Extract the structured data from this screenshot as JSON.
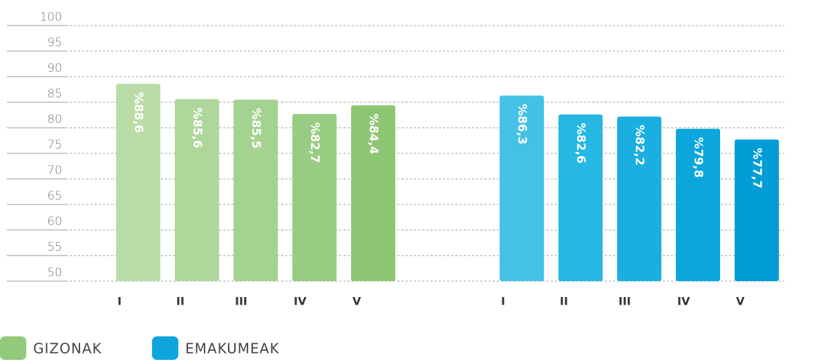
{
  "chart_data": {
    "type": "bar",
    "categories": [
      "I",
      "II",
      "III",
      "IV",
      "V"
    ],
    "series": [
      {
        "name": "GIZONAK",
        "color": "#93c97a",
        "colors": [
          "#badca7",
          "#afd79c",
          "#a4d290",
          "#99cc83",
          "#8dc672"
        ],
        "values": [
          88.6,
          85.6,
          85.5,
          82.7,
          84.4
        ],
        "value_labels": [
          "%88,6",
          "%85,6",
          "%85,5",
          "%82,7",
          "%84,4"
        ]
      },
      {
        "name": "EMAKUMEAK",
        "color": "#0ea5dc",
        "colors": [
          "#45c1e6",
          "#26b8e3",
          "#1aafe0",
          "#0ba6dc",
          "#009dd6"
        ],
        "values": [
          86.3,
          82.6,
          82.2,
          79.8,
          77.7
        ],
        "value_labels": [
          "%86,3",
          "%82,6",
          "%82,2",
          "%79,8",
          "%77,7"
        ]
      }
    ],
    "ylim": [
      50,
      100
    ],
    "yticks": [
      50,
      55,
      60,
      65,
      70,
      75,
      80,
      85,
      90,
      95,
      100
    ],
    "grid": true
  }
}
